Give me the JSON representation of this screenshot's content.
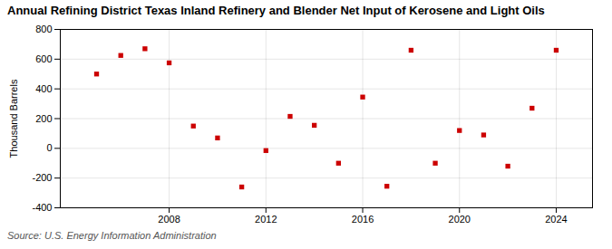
{
  "chart_data": {
    "type": "scatter",
    "title": "Annual Refining District Texas Inland Refinery and Blender Net Input of Kerosene and Light Oils",
    "ylabel": "Thousand Barrels",
    "caption": "Source: U.S. Energy Information Administration",
    "x": [
      2005,
      2006,
      2007,
      2008,
      2009,
      2010,
      2011,
      2012,
      2013,
      2014,
      2015,
      2016,
      2017,
      2018,
      2019,
      2020,
      2021,
      2022,
      2023,
      2024
    ],
    "values": [
      500,
      625,
      670,
      575,
      150,
      70,
      -260,
      -15,
      215,
      155,
      -100,
      345,
      -255,
      660,
      -100,
      120,
      90,
      -120,
      270,
      660
    ],
    "color": "#cc0000",
    "marker": "square",
    "xlim": [
      2003.5,
      2025.5
    ],
    "xticks": [
      2008,
      2012,
      2016,
      2020,
      2024
    ],
    "ylim": [
      -400,
      800
    ],
    "yticks": [
      -400,
      -200,
      0,
      200,
      400,
      600,
      800
    ],
    "grid": true
  }
}
